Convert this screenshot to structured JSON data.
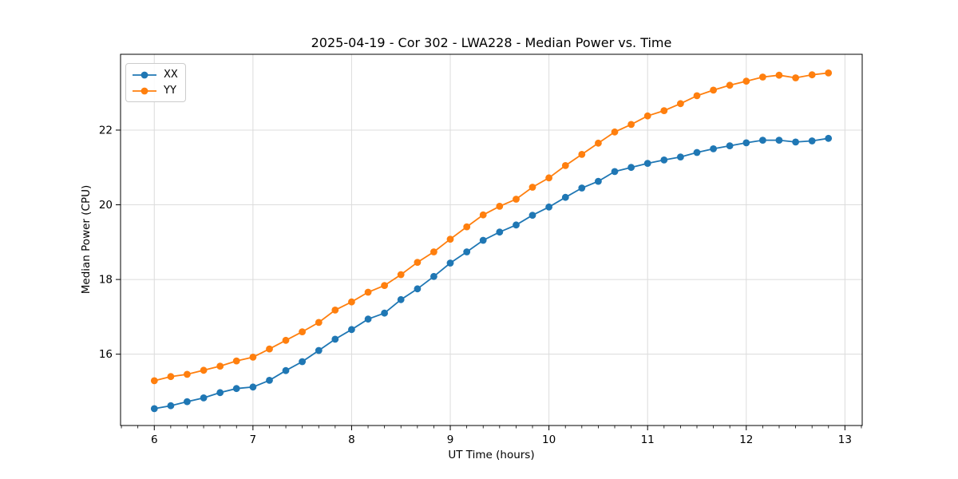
{
  "chart_data": {
    "type": "line",
    "title": "2025-04-19 - Cor 302 - LWA228 - Median Power vs. Time",
    "xlabel": "UT Time (hours)",
    "ylabel": "Median Power (CPU)",
    "xlim": [
      5.658,
      13.175
    ],
    "ylim": [
      14.09,
      24.03
    ],
    "xticks": [
      6,
      7,
      8,
      9,
      10,
      11,
      12,
      13
    ],
    "yticks": [
      16,
      18,
      20,
      22
    ],
    "minor_xtick_step_hours": 0.1667,
    "grid": true,
    "grid_color": "#dcdcdc",
    "spine_color": "#000000",
    "legend_position": "upper left",
    "x": [
      6.0,
      6.167,
      6.333,
      6.5,
      6.667,
      6.833,
      7.0,
      7.167,
      7.333,
      7.5,
      7.667,
      7.833,
      8.0,
      8.167,
      8.333,
      8.5,
      8.667,
      8.833,
      9.0,
      9.167,
      9.333,
      9.5,
      9.667,
      9.833,
      10.0,
      10.167,
      10.333,
      10.5,
      10.667,
      10.833,
      11.0,
      11.167,
      11.333,
      11.5,
      11.667,
      11.833,
      12.0,
      12.167,
      12.333,
      12.5,
      12.667,
      12.833
    ],
    "series": [
      {
        "name": "XX",
        "color": "#1f77b4",
        "values": [
          14.54,
          14.62,
          14.73,
          14.83,
          14.97,
          15.08,
          15.12,
          15.3,
          15.56,
          15.8,
          16.1,
          16.4,
          16.66,
          16.94,
          17.1,
          17.46,
          17.75,
          18.08,
          18.44,
          18.74,
          19.05,
          19.27,
          19.46,
          19.72,
          19.94,
          20.2,
          20.45,
          20.63,
          20.89,
          21.0,
          21.11,
          21.2,
          21.28,
          21.4,
          21.5,
          21.58,
          21.66,
          21.73,
          21.73,
          21.68,
          21.71,
          21.78
        ]
      },
      {
        "name": "YY",
        "color": "#ff7f0e",
        "values": [
          15.29,
          15.4,
          15.46,
          15.57,
          15.68,
          15.82,
          15.92,
          16.14,
          16.37,
          16.6,
          16.85,
          17.18,
          17.4,
          17.66,
          17.84,
          18.13,
          18.46,
          18.74,
          19.08,
          19.41,
          19.73,
          19.96,
          20.15,
          20.47,
          20.72,
          21.05,
          21.35,
          21.65,
          21.95,
          22.15,
          22.38,
          22.52,
          22.71,
          22.92,
          23.07,
          23.2,
          23.31,
          23.42,
          23.47,
          23.4,
          23.48,
          23.53
        ]
      }
    ]
  }
}
